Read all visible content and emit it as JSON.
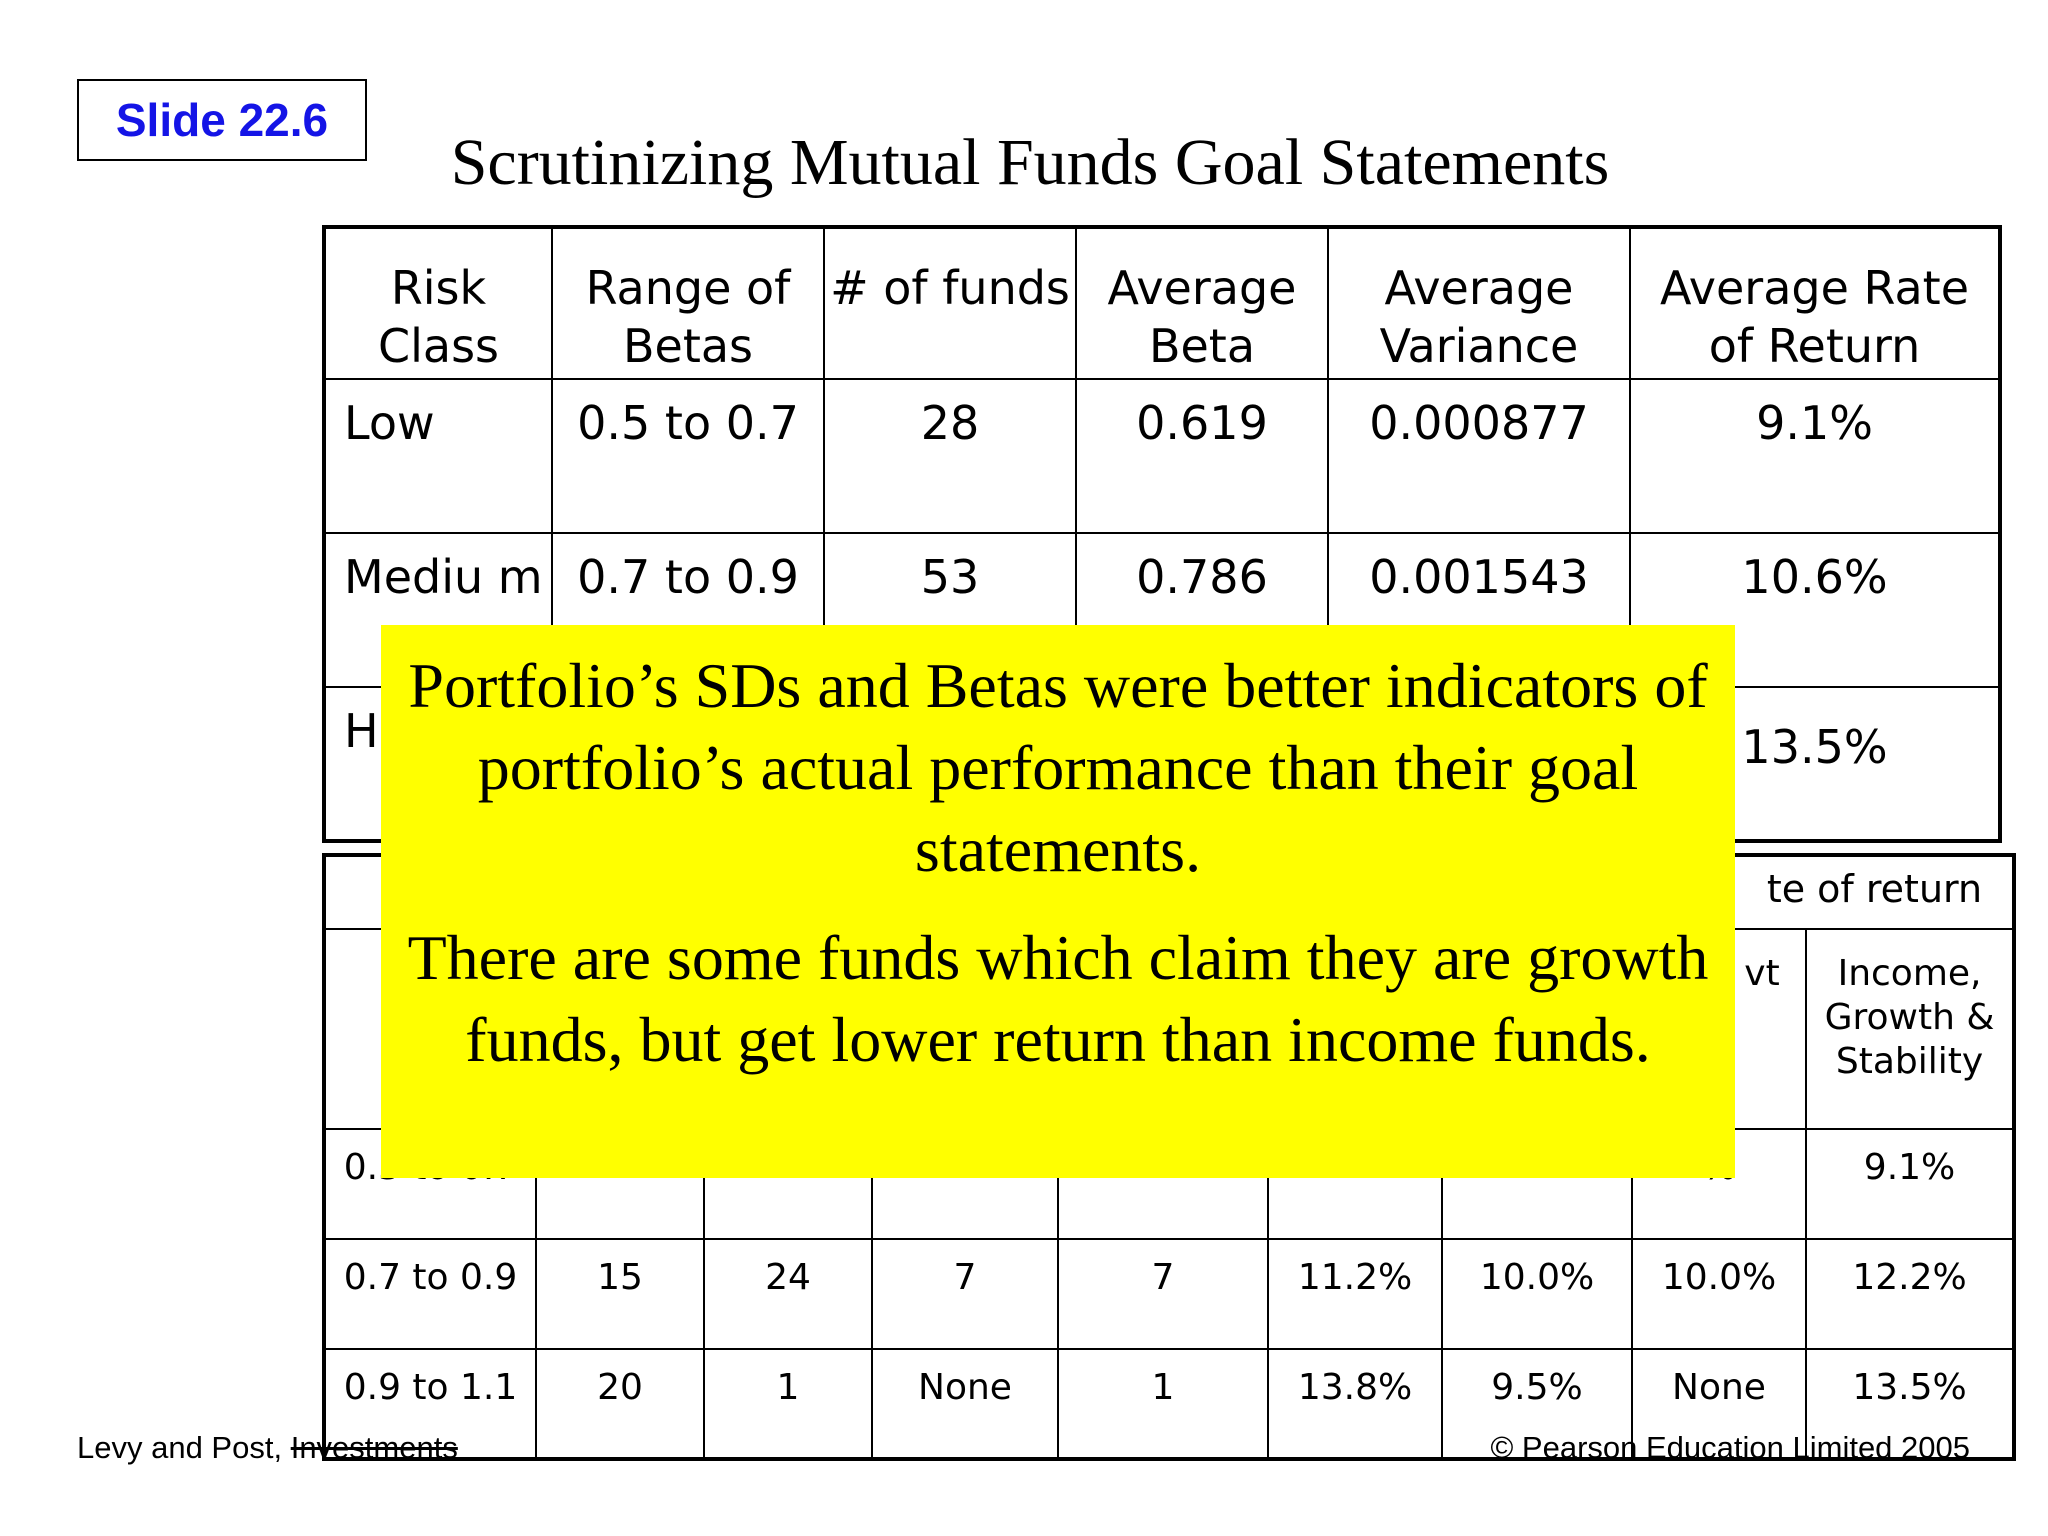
{
  "slide_label": "Slide 22.6",
  "title": "Scrutinizing Mutual Funds Goal Statements",
  "table1": {
    "headers": [
      "Risk Class",
      "Range of Betas",
      "# of funds",
      "Average Beta",
      "Average Variance",
      "Average Rate of Return"
    ],
    "rows": [
      [
        "Low",
        "0.5 to 0.7",
        "28",
        "0.619",
        "0.000877",
        "9.1%"
      ],
      [
        "Mediu m",
        "0.7 to 0.9",
        "53",
        "0.786",
        "0.001543",
        "10.6%"
      ],
      [
        "H",
        "",
        "",
        "",
        "",
        "13.5%"
      ]
    ]
  },
  "table2": {
    "top_header": "te of return",
    "headers": [
      "",
      "",
      "",
      "",
      "",
      "",
      "",
      "m & vt",
      "Income, Growth & Stability"
    ],
    "rows": [
      [
        "0.5 to 0.7",
        "",
        "",
        "",
        "",
        "",
        "",
        "%",
        "9.1%"
      ],
      [
        "0.7 to 0.9",
        "15",
        "24",
        "7",
        "7",
        "11.2%",
        "10.0%",
        "10.0%",
        "12.2%"
      ],
      [
        "0.9 to 1.1",
        "20",
        "1",
        "None",
        "1",
        "13.8%",
        "9.5%",
        "None",
        "13.5%"
      ]
    ]
  },
  "overlay": {
    "paragraph1": "Portfolio’s SDs and Betas were better indicators of portfolio’s actual performance than their goal statements.",
    "paragraph2": "There are some funds which claim they are growth funds, but get lower return than income funds."
  },
  "footer": {
    "left_plain": "Levy and Post,",
    "left_struck": "Investments",
    "right": "© Pearson Education Limited 2005"
  }
}
